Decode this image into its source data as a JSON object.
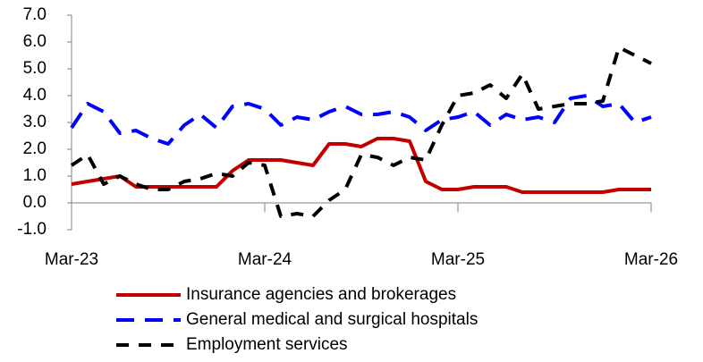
{
  "chart_data": {
    "type": "line",
    "categories": [
      "Mar-23",
      null,
      null,
      null,
      null,
      null,
      null,
      null,
      null,
      null,
      null,
      null,
      "Mar-24",
      null,
      null,
      null,
      null,
      null,
      null,
      null,
      null,
      null,
      null,
      null,
      "Mar-25",
      null,
      null,
      null,
      null,
      null,
      null,
      null,
      null,
      null,
      null,
      null,
      "Mar-26"
    ],
    "series": [
      {
        "name": "Insurance agencies and brokerages",
        "color": "#c00000",
        "dash": "solid",
        "values": [
          0.7,
          0.8,
          0.9,
          1.0,
          0.6,
          0.6,
          0.6,
          0.6,
          0.6,
          0.6,
          1.2,
          1.6,
          1.6,
          1.6,
          1.5,
          1.4,
          2.2,
          2.2,
          2.1,
          2.4,
          2.4,
          2.3,
          0.8,
          0.5,
          0.5,
          0.6,
          0.6,
          0.6,
          0.4,
          0.4,
          0.4,
          0.4,
          0.4,
          0.4,
          0.5,
          0.5,
          0.5
        ]
      },
      {
        "name": "General medical and surgical hospitals",
        "color": "#0000ff",
        "dash": "long-dash",
        "values": [
          2.8,
          3.7,
          3.4,
          2.6,
          2.7,
          2.4,
          2.2,
          2.9,
          3.3,
          2.8,
          3.6,
          3.7,
          3.5,
          2.9,
          3.2,
          3.1,
          3.4,
          3.6,
          3.3,
          3.3,
          3.4,
          3.2,
          2.7,
          3.1,
          3.2,
          3.4,
          2.9,
          3.3,
          3.1,
          3.2,
          3.0,
          3.9,
          4.0,
          3.6,
          3.7,
          3.0,
          3.2
        ]
      },
      {
        "name": "Employment services",
        "color": "#000000",
        "dash": "dash",
        "values": [
          1.4,
          1.8,
          0.7,
          1.0,
          0.7,
          0.5,
          0.5,
          0.8,
          0.9,
          1.1,
          1.0,
          1.5,
          1.4,
          -0.5,
          -0.4,
          -0.5,
          0.1,
          0.5,
          1.8,
          1.7,
          1.4,
          1.7,
          1.6,
          2.9,
          4.0,
          4.1,
          4.4,
          3.9,
          4.8,
          3.5,
          3.6,
          3.7,
          3.7,
          3.8,
          5.8,
          5.5,
          5.2
        ]
      }
    ],
    "ylim": [
      -1,
      7
    ],
    "yticks": [
      {
        "value": -1,
        "label": "-1.0"
      },
      {
        "value": 0,
        "label": "0.0"
      },
      {
        "value": 1,
        "label": "1.0"
      },
      {
        "value": 2,
        "label": "2.0"
      },
      {
        "value": 3,
        "label": "3.0"
      },
      {
        "value": 4,
        "label": "4.0"
      },
      {
        "value": 5,
        "label": "5.0"
      },
      {
        "value": 6,
        "label": "6.0"
      },
      {
        "value": 7,
        "label": "7.0"
      }
    ],
    "grid": false,
    "legend": "bottom"
  }
}
